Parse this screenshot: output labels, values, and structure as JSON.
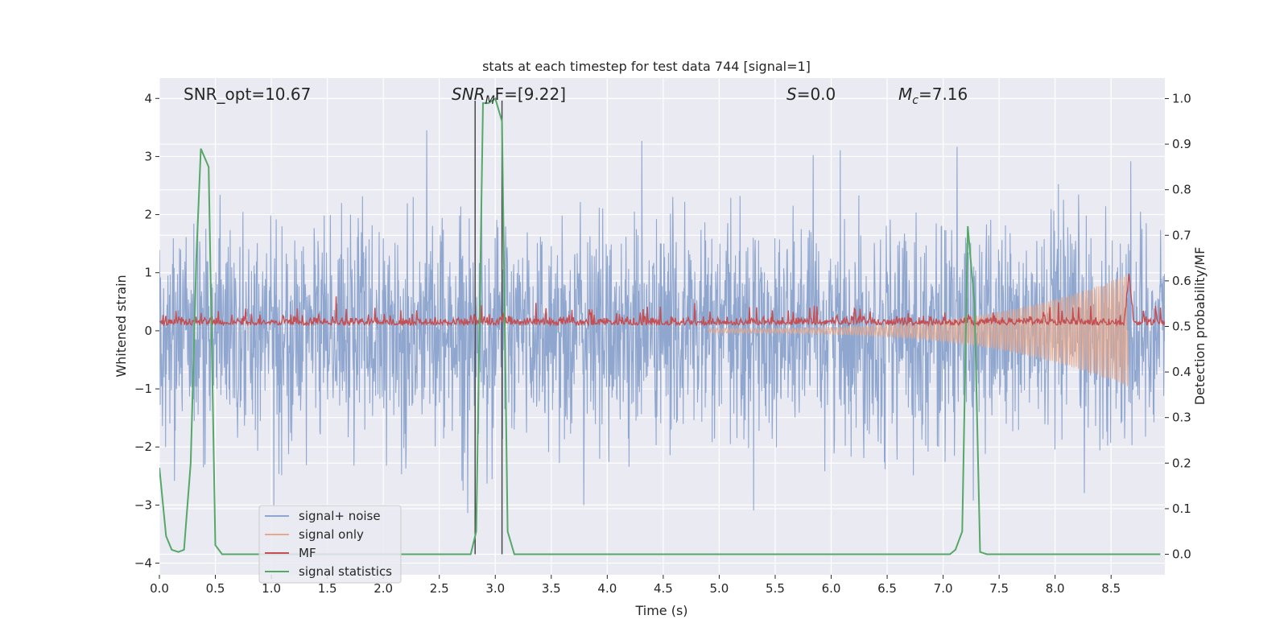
{
  "chart_data": {
    "type": "line",
    "title": "stats at each timestep for test data 744 [signal=1]",
    "xlabel": "Time (s)",
    "ylabel_left": "Whitened strain",
    "ylabel_right": "Detection probability/MF",
    "xlim": [
      0.0,
      8.98
    ],
    "ylim_left": [
      -4.2,
      4.35
    ],
    "ylim_right": [
      -0.045,
      1.045
    ],
    "x_ticks": [
      0.0,
      0.5,
      1.0,
      1.5,
      2.0,
      2.5,
      3.0,
      3.5,
      4.0,
      4.5,
      5.0,
      5.5,
      6.0,
      6.5,
      7.0,
      7.5,
      8.0,
      8.5
    ],
    "x_tick_labels": [
      "0.0",
      "0.5",
      "1.0",
      "1.5",
      "2.0",
      "2.5",
      "3.0",
      "3.5",
      "4.0",
      "4.5",
      "5.0",
      "5.5",
      "6.0",
      "6.5",
      "7.0",
      "7.5",
      "8.0",
      "8.5"
    ],
    "y_left_ticks": [
      -4,
      -3,
      -2,
      -1,
      0,
      1,
      2,
      3,
      4
    ],
    "y_left_tick_labels": [
      "−4",
      "−3",
      "−2",
      "−1",
      "0",
      "1",
      "2",
      "3",
      "4"
    ],
    "y_right_ticks": [
      0.0,
      0.1,
      0.2,
      0.3,
      0.4,
      0.5,
      0.6,
      0.7,
      0.8,
      0.9,
      1.0
    ],
    "y_right_tick_labels": [
      "0.0",
      "0.1",
      "0.2",
      "0.3",
      "0.4",
      "0.5",
      "0.6",
      "0.7",
      "0.8",
      "0.9",
      "1.0"
    ],
    "grid": true,
    "legend_position": "lower-left",
    "annotations": [
      {
        "text_main": "SNR_opt=10.67",
        "sub": "",
        "text_tail": ""
      },
      {
        "text_main": "SNR",
        "sub": "M",
        "text_tail": "F=[9.22]"
      },
      {
        "text_main": "S",
        "sub": "",
        "text_tail": "=0.0"
      },
      {
        "text_main": "M",
        "sub": "c",
        "text_tail": "=7.16"
      }
    ],
    "vertical_markers_x": [
      2.82,
      3.06
    ],
    "series": [
      {
        "name": "signal+ noise",
        "color": "#8fa6cf",
        "axis": "left",
        "style": "noise",
        "sigma": 0.93,
        "x_range": [
          0.0,
          8.98
        ]
      },
      {
        "name": "signal only",
        "color": "#e6a98c",
        "axis": "left",
        "style": "chirp",
        "chirp_start_x": 4.9,
        "chirp_peak_x": 8.65,
        "chirp_peak_amplitude": 0.93
      },
      {
        "name": "MF",
        "color": "#c44e52",
        "axis": "left",
        "style": "mf",
        "baseline": 0.1,
        "peak_x": 8.66,
        "peak_value": 1.0
      },
      {
        "name": "signal statistics",
        "color": "#55a868",
        "axis": "right",
        "x": [
          0.0,
          0.06,
          0.11,
          0.17,
          0.22,
          0.28,
          0.33,
          0.37,
          0.44,
          0.5,
          0.56,
          0.61,
          0.67,
          0.72,
          0.78,
          0.83,
          0.89,
          0.94,
          1.0,
          1.06,
          1.11,
          1.17,
          1.22,
          1.28,
          1.33,
          1.39,
          1.44,
          1.5,
          1.56,
          1.61,
          1.67,
          1.72,
          1.78,
          1.83,
          1.89,
          1.94,
          2.0,
          2.06,
          2.11,
          2.17,
          2.22,
          2.28,
          2.33,
          2.39,
          2.44,
          2.5,
          2.56,
          2.61,
          2.67,
          2.72,
          2.78,
          2.83,
          2.89,
          2.94,
          3.0,
          3.06,
          3.11,
          3.17,
          3.22,
          3.28,
          3.33,
          3.39,
          3.44,
          3.5,
          3.56,
          3.61,
          3.67,
          3.72,
          3.78,
          3.83,
          3.89,
          3.94,
          4.0,
          4.06,
          4.11,
          4.17,
          4.22,
          4.28,
          4.33,
          4.39,
          4.44,
          4.5,
          4.56,
          4.61,
          4.67,
          4.72,
          4.78,
          4.83,
          4.89,
          4.94,
          5.0,
          5.06,
          5.11,
          5.17,
          5.22,
          5.28,
          5.33,
          5.39,
          5.44,
          5.5,
          5.56,
          5.61,
          5.67,
          5.72,
          5.78,
          5.83,
          5.89,
          5.94,
          6.0,
          6.06,
          6.11,
          6.17,
          6.22,
          6.28,
          6.33,
          6.39,
          6.44,
          6.5,
          6.56,
          6.61,
          6.67,
          6.72,
          6.78,
          6.83,
          6.89,
          6.94,
          7.0,
          7.06,
          7.11,
          7.17,
          7.22,
          7.28,
          7.33,
          7.39,
          7.44,
          7.5,
          7.56,
          7.61,
          7.67,
          7.72,
          7.78,
          7.83,
          7.89,
          7.94,
          8.0,
          8.06,
          8.11,
          8.17,
          8.22,
          8.28,
          8.33,
          8.39,
          8.44,
          8.5,
          8.56,
          8.61,
          8.67,
          8.72,
          8.78,
          8.83,
          8.89,
          8.94
        ],
        "values": [
          0.19,
          0.04,
          0.01,
          0.005,
          0.01,
          0.2,
          0.65,
          0.89,
          0.85,
          0.02,
          0.0,
          0.0,
          0.0,
          0.0,
          0.0,
          0.0,
          0.0,
          0.0,
          0.0,
          0.0,
          0.0,
          0.0,
          0.0,
          0.0,
          0.0,
          0.0,
          0.0,
          0.0,
          0.0,
          0.0,
          0.0,
          0.0,
          0.0,
          0.0,
          0.0,
          0.0,
          0.0,
          0.0,
          0.0,
          0.0,
          0.0,
          0.0,
          0.0,
          0.0,
          0.0,
          0.0,
          0.0,
          0.0,
          0.0,
          0.0,
          0.0,
          0.05,
          0.99,
          0.99,
          1.0,
          0.95,
          0.05,
          0.0,
          0.0,
          0.0,
          0.0,
          0.0,
          0.0,
          0.0,
          0.0,
          0.0,
          0.0,
          0.0,
          0.0,
          0.0,
          0.0,
          0.0,
          0.0,
          0.0,
          0.0,
          0.0,
          0.0,
          0.0,
          0.0,
          0.0,
          0.0,
          0.0,
          0.0,
          0.0,
          0.0,
          0.0,
          0.0,
          0.0,
          0.0,
          0.0,
          0.0,
          0.0,
          0.0,
          0.0,
          0.0,
          0.0,
          0.0,
          0.0,
          0.0,
          0.0,
          0.0,
          0.0,
          0.0,
          0.0,
          0.0,
          0.0,
          0.0,
          0.0,
          0.0,
          0.0,
          0.0,
          0.0,
          0.0,
          0.0,
          0.0,
          0.0,
          0.0,
          0.0,
          0.0,
          0.0,
          0.0,
          0.0,
          0.0,
          0.0,
          0.0,
          0.0,
          0.0,
          0.0,
          0.01,
          0.05,
          0.72,
          0.55,
          0.005,
          0.0,
          0.0,
          0.0,
          0.0,
          0.0,
          0.0,
          0.0,
          0.0,
          0.0,
          0.0,
          0.0,
          0.0,
          0.0,
          0.0,
          0.0,
          0.0,
          0.0,
          0.0,
          0.0,
          0.0,
          0.0,
          0.0,
          0.0,
          0.0,
          0.0,
          0.0,
          0.0,
          0.0,
          0.0
        ]
      }
    ]
  }
}
